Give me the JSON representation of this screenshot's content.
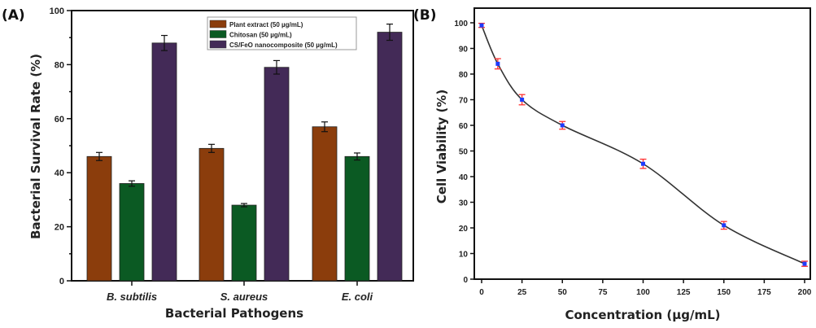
{
  "chart_data": [
    {
      "type": "bar",
      "panel_label": "(A)",
      "title": "",
      "xlabel": "Bacterial Pathogens",
      "ylabel": "Bacterial Survival Rate (%)",
      "ylim": [
        0,
        100
      ],
      "yticks": [
        0,
        20,
        40,
        60,
        80,
        100
      ],
      "categories": [
        "B. subtilis",
        "S. aureus",
        "E. coli"
      ],
      "legend_position": "top-right",
      "series": [
        {
          "name": "Plant extract (50 µg/mL)",
          "color": "#8B3D0C",
          "values": [
            46,
            49,
            57
          ],
          "errors": [
            1.5,
            1.5,
            1.8
          ]
        },
        {
          "name": "Chitosan (50 µg/mL)",
          "color": "#0B5A23",
          "values": [
            36,
            28,
            46
          ],
          "errors": [
            1.0,
            0.6,
            1.3
          ]
        },
        {
          "name": "CS/FeO nanocomposite (50 µg/mL)",
          "color": "#432A57",
          "values": [
            88,
            79,
            92
          ],
          "errors": [
            2.8,
            2.5,
            3.0
          ]
        }
      ]
    },
    {
      "type": "line",
      "panel_label": "(B)",
      "title": "",
      "xlabel": "Concentration (µg/mL)",
      "ylabel": "Cell Viability (%)",
      "xlim": [
        0,
        200
      ],
      "ylim": [
        0,
        100
      ],
      "xticks": [
        0,
        25,
        50,
        75,
        100,
        125,
        150,
        175,
        200
      ],
      "yticks": [
        0,
        10,
        20,
        30,
        40,
        50,
        60,
        70,
        80,
        90,
        100
      ],
      "x": [
        0,
        10,
        25,
        50,
        100,
        150,
        200
      ],
      "y": [
        99,
        84,
        70,
        60,
        45,
        21,
        6
      ],
      "errors": [
        0.8,
        2.0,
        2.0,
        1.5,
        1.8,
        1.5,
        1.0
      ],
      "line_color": "#333333",
      "marker_color": "#1E3CFF",
      "errorbar_color": "#FF3030"
    }
  ]
}
